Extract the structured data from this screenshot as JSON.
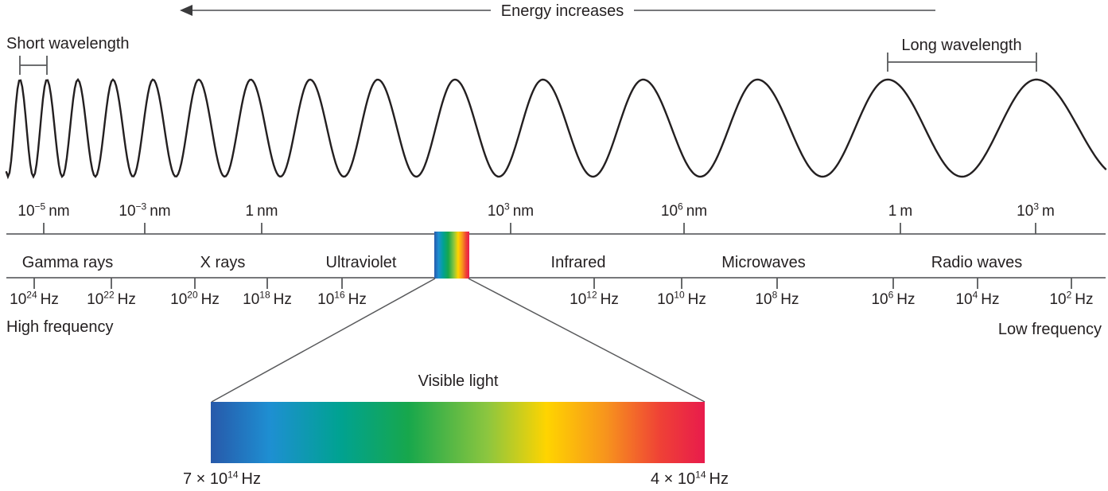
{
  "energy_arrow": {
    "label": "Energy increases"
  },
  "wavelength_brackets": {
    "short": "Short wavelength",
    "long": "Long wavelength"
  },
  "wavelength_scale": {
    "ticks": [
      {
        "base": "10",
        "exp": "−5",
        "unit": "nm"
      },
      {
        "base": "10",
        "exp": "−3",
        "unit": "nm"
      },
      {
        "base": "1",
        "exp": "",
        "unit": "nm"
      },
      {
        "base": "10",
        "exp": "3",
        "unit": "nm"
      },
      {
        "base": "10",
        "exp": "6",
        "unit": "nm"
      },
      {
        "base": "1",
        "exp": "",
        "unit": "m"
      },
      {
        "base": "10",
        "exp": "3",
        "unit": "m"
      }
    ]
  },
  "bands": [
    "Gamma rays",
    "X rays",
    "Ultraviolet",
    "Infrared",
    "Microwaves",
    "Radio waves"
  ],
  "frequency_scale": {
    "high_label": "High frequency",
    "low_label": "Low frequency",
    "ticks": [
      {
        "base": "10",
        "exp": "24",
        "unit": "Hz"
      },
      {
        "base": "10",
        "exp": "22",
        "unit": "Hz"
      },
      {
        "base": "10",
        "exp": "20",
        "unit": "Hz"
      },
      {
        "base": "10",
        "exp": "18",
        "unit": "Hz"
      },
      {
        "base": "10",
        "exp": "16",
        "unit": "Hz"
      },
      {
        "base": "10",
        "exp": "12",
        "unit": "Hz"
      },
      {
        "base": "10",
        "exp": "10",
        "unit": "Hz"
      },
      {
        "base": "10",
        "exp": "8",
        "unit": "Hz"
      },
      {
        "base": "10",
        "exp": "6",
        "unit": "Hz"
      },
      {
        "base": "10",
        "exp": "4",
        "unit": "Hz"
      },
      {
        "base": "10",
        "exp": "2",
        "unit": "Hz"
      }
    ]
  },
  "visible_light": {
    "title": "Visible light",
    "left_freq": {
      "prefix": "7 × ",
      "base": "10",
      "exp": "14",
      "unit": "Hz"
    },
    "right_freq": {
      "prefix": "4 × ",
      "base": "10",
      "exp": "14",
      "unit": "Hz"
    }
  },
  "colors": {
    "ink": "#231f20",
    "line_gray": "#77787b",
    "tick_gray": "#58595b",
    "spectrum": [
      "#2759aa",
      "#1e8fd2",
      "#00a292",
      "#17a74c",
      "#8cc63f",
      "#ffd400",
      "#f7941d",
      "#ef4136",
      "#e81b4c"
    ]
  }
}
